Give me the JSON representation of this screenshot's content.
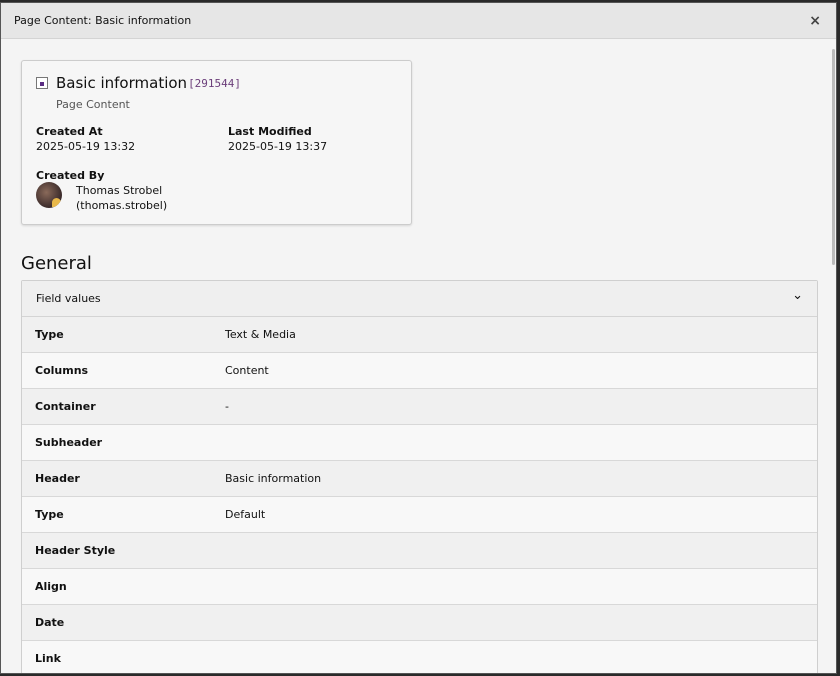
{
  "modal": {
    "title": "Page Content: Basic information",
    "close": "×"
  },
  "card": {
    "title": "Basic information",
    "uid": "[291544]",
    "subtitle": "Page Content",
    "created_at_label": "Created At",
    "created_at": "2025-05-19 13:32",
    "modified_label": "Last Modified",
    "modified": "2025-05-19 13:37",
    "created_by_label": "Created By",
    "user_name": "Thomas Strobel",
    "user_login": "(thomas.strobel)"
  },
  "section": {
    "title": "General",
    "panel_title": "Field values",
    "chevron": "⌄"
  },
  "rows": [
    {
      "k": "Type",
      "v": "Text & Media"
    },
    {
      "k": "Columns",
      "v": "Content"
    },
    {
      "k": "Container",
      "v": "-"
    },
    {
      "k": "Subheader",
      "v": ""
    },
    {
      "k": "Header",
      "v": "Basic information"
    },
    {
      "k": "Type",
      "v": "Default"
    },
    {
      "k": "Header Style",
      "v": ""
    },
    {
      "k": "Align",
      "v": ""
    },
    {
      "k": "Date",
      "v": ""
    },
    {
      "k": "Link",
      "v": ""
    }
  ]
}
